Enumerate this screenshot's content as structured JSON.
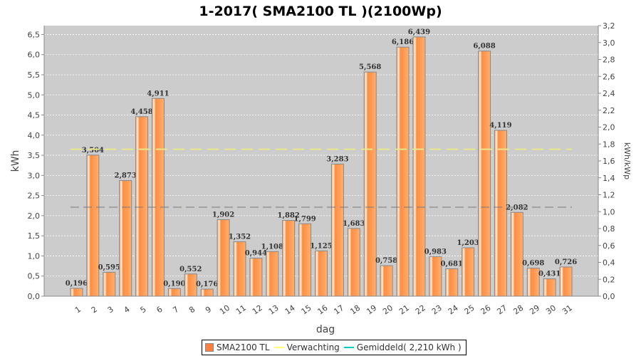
{
  "chart_data": {
    "type": "bar",
    "title": "1-2017( SMA2100 TL )(2100Wp)",
    "xlabel": "dag",
    "ylabel": "kWh",
    "y2label": "kWh/kWp",
    "categories": [
      "1",
      "2",
      "3",
      "4",
      "5",
      "6",
      "7",
      "8",
      "9",
      "10",
      "11",
      "12",
      "13",
      "14",
      "15",
      "16",
      "17",
      "18",
      "19",
      "20",
      "21",
      "22",
      "23",
      "24",
      "25",
      "26",
      "27",
      "28",
      "29",
      "30",
      "31"
    ],
    "series": [
      {
        "name": "SMA2100 TL",
        "values": [
          0.196,
          3.504,
          0.595,
          2.873,
          4.458,
          4.911,
          0.19,
          0.552,
          0.176,
          1.902,
          1.352,
          0.944,
          1.108,
          1.882,
          1.799,
          1.125,
          3.283,
          1.683,
          5.568,
          0.758,
          6.186,
          6.439,
          0.983,
          0.681,
          1.203,
          6.088,
          4.119,
          2.082,
          0.698,
          0.431,
          0.726
        ]
      }
    ],
    "value_labels": [
      "0,196",
      "3,504",
      "0,595",
      "2,873",
      "4,458",
      "4,911",
      "0,190",
      "0,552",
      "0,176",
      "1,902",
      "1,352",
      "0,944",
      "1,108",
      "1,882",
      "1,799",
      "1,125",
      "3,283",
      "1,683",
      "5,568",
      "0,758",
      "6,186",
      "6,439",
      "0,983",
      "0,681",
      "1,203",
      "6,088",
      "4,119",
      "2,082",
      "0,698",
      "0,431",
      "0,726"
    ],
    "expected_line": 3.65,
    "average_line": 2.21,
    "ylim": [
      0,
      6.72
    ],
    "y2lim": [
      0,
      3.2
    ],
    "yticks": [
      "0,0",
      "0,5",
      "1,0",
      "1,5",
      "2,0",
      "2,5",
      "3,0",
      "3,5",
      "4,0",
      "4,5",
      "5,0",
      "5,5",
      "6,0",
      "6,5"
    ],
    "y2ticks": [
      "0,0",
      "0,2",
      "0,4",
      "0,6",
      "0,8",
      "1,0",
      "1,2",
      "1,4",
      "1,6",
      "1,8",
      "2,0",
      "2,2",
      "2,4",
      "2,6",
      "2,8",
      "3,0",
      "3,2"
    ],
    "grid": true,
    "legend_position": "bottom",
    "legend": [
      {
        "label": "SMA2100 TL",
        "color": "#ff7f3f"
      },
      {
        "label": "Verwachting",
        "color": "#ffff66"
      },
      {
        "label": "Gemiddeld( 2,210 kWh )",
        "color": "#00cccc"
      }
    ],
    "colors": {
      "bar": "#ff8c40",
      "plot_bg": "#cccccc",
      "expected": "#e8e88a",
      "average": "#777777"
    }
  }
}
